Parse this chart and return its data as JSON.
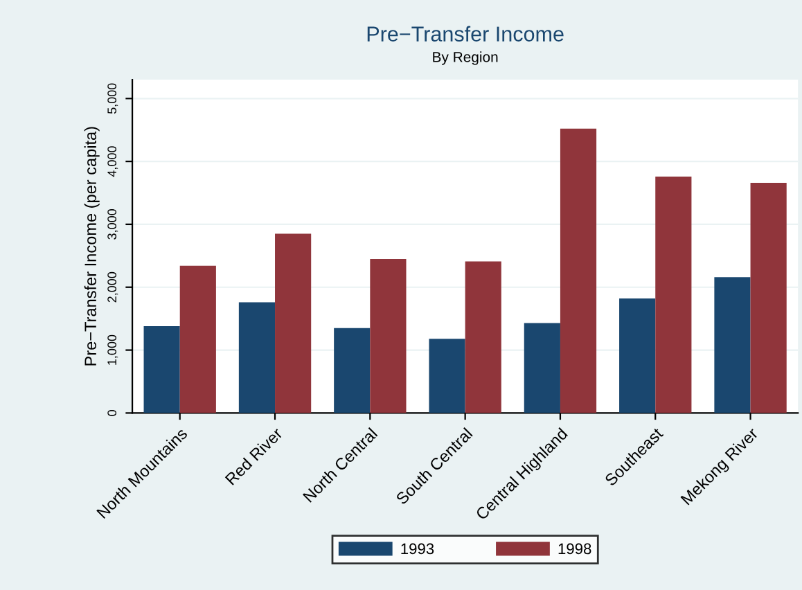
{
  "chart_data": {
    "type": "bar",
    "title": "Pre−Transfer Income",
    "subtitle": "By Region",
    "ylabel": "Pre−Transfer Income (per capita)",
    "categories": [
      "North Mountains",
      "Red River",
      "North Central",
      "South Central",
      "Central Highland",
      "Southeast",
      "Mekong River"
    ],
    "series": [
      {
        "name": "1993",
        "color": "#1a476f",
        "values": [
          1380,
          1760,
          1350,
          1180,
          1430,
          1820,
          2160
        ]
      },
      {
        "name": "1998",
        "color": "#90353b",
        "values": [
          2340,
          2850,
          2450,
          2410,
          4520,
          3760,
          3660
        ]
      }
    ],
    "ylim": [
      0,
      5300
    ],
    "yticks": [
      0,
      {
        "value": 1000,
        "label": "1,000"
      },
      {
        "value": 2000,
        "label": "2,000"
      },
      {
        "value": 3000,
        "label": "3,000"
      },
      {
        "value": 4000,
        "label": "4,000"
      },
      {
        "value": 5000,
        "label": "5,000"
      }
    ],
    "grid": "y",
    "legend": "bottom"
  }
}
